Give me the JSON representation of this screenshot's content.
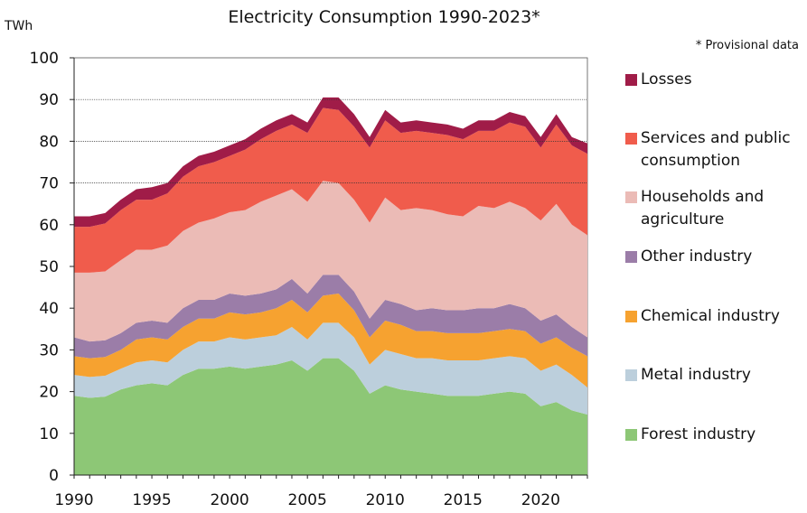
{
  "chart_data": {
    "type": "area",
    "stacked": true,
    "title": "Electricity Consumption 1990-2023*",
    "note": "* Provisional data",
    "ylabel": "TWh",
    "xlabel": "",
    "ylim": [
      0,
      100
    ],
    "yticks": [
      0,
      10,
      20,
      30,
      40,
      50,
      60,
      70,
      80,
      90,
      100
    ],
    "xticks": [
      1990,
      1995,
      2000,
      2005,
      2010,
      2015,
      2020
    ],
    "xlim": [
      1990,
      2023
    ],
    "grid": "horizontal dotted lines at 70, 80, 90",
    "legend_position": "right",
    "x": [
      1990,
      1991,
      1992,
      1993,
      1994,
      1995,
      1996,
      1997,
      1998,
      1999,
      2000,
      2001,
      2002,
      2003,
      2004,
      2005,
      2006,
      2007,
      2008,
      2009,
      2010,
      2011,
      2012,
      2013,
      2014,
      2015,
      2016,
      2017,
      2018,
      2019,
      2020,
      2021,
      2022,
      2023
    ],
    "series": [
      {
        "name": "Forest industry",
        "color": "#8dc776",
        "values": [
          19.0,
          18.5,
          18.8,
          20.5,
          21.5,
          22.0,
          21.5,
          24.0,
          25.5,
          25.5,
          26.0,
          25.5,
          26.0,
          26.5,
          27.5,
          25.0,
          28.0,
          28.0,
          25.0,
          19.5,
          21.5,
          20.5,
          20.0,
          19.5,
          19.0,
          19.0,
          19.0,
          19.5,
          20.0,
          19.5,
          16.5,
          17.5,
          15.5,
          14.5
        ]
      },
      {
        "name": "Metal industry",
        "color": "#bccfdc",
        "values": [
          5.0,
          5.0,
          5.0,
          5.0,
          5.5,
          5.5,
          5.5,
          6.0,
          6.5,
          6.5,
          7.0,
          7.0,
          7.0,
          7.0,
          8.0,
          7.5,
          8.5,
          8.5,
          8.0,
          7.0,
          8.5,
          8.5,
          8.0,
          8.5,
          8.5,
          8.5,
          8.5,
          8.5,
          8.5,
          8.5,
          8.5,
          9.0,
          8.5,
          6.5
        ]
      },
      {
        "name": "Chemical industry",
        "color": "#f6a230",
        "values": [
          4.5,
          4.5,
          4.5,
          4.5,
          5.5,
          5.5,
          5.5,
          5.5,
          5.5,
          5.5,
          6.0,
          6.0,
          6.0,
          6.5,
          6.5,
          6.5,
          6.5,
          7.0,
          6.5,
          6.5,
          7.0,
          7.0,
          6.5,
          6.5,
          6.5,
          6.5,
          6.5,
          6.5,
          6.5,
          6.5,
          6.5,
          6.5,
          6.5,
          7.5
        ]
      },
      {
        "name": "Other industry",
        "color": "#9b7da8",
        "values": [
          4.5,
          4.0,
          4.0,
          4.0,
          4.0,
          4.0,
          4.0,
          4.5,
          4.5,
          4.5,
          4.5,
          4.5,
          4.5,
          4.5,
          5.0,
          4.5,
          5.0,
          4.5,
          4.5,
          4.5,
          5.0,
          5.0,
          5.0,
          5.5,
          5.5,
          5.5,
          6.0,
          5.5,
          6.0,
          5.5,
          5.5,
          5.5,
          5.0,
          4.5
        ]
      },
      {
        "name": "Households and agriculture",
        "color": "#ebbbb6",
        "values": [
          15.5,
          16.5,
          16.5,
          17.5,
          17.5,
          17.0,
          18.5,
          18.5,
          18.5,
          19.5,
          19.5,
          20.5,
          22.0,
          22.5,
          21.5,
          22.0,
          22.5,
          22.0,
          22.0,
          23.0,
          24.5,
          22.5,
          24.5,
          23.5,
          23.0,
          22.5,
          24.5,
          24.0,
          24.5,
          24.0,
          24.0,
          26.5,
          24.5,
          24.5
        ]
      },
      {
        "name": "Services and public consumption",
        "color": "#f05c4c",
        "values": [
          11.0,
          11.0,
          11.5,
          12.0,
          12.0,
          12.0,
          12.5,
          13.0,
          13.5,
          13.5,
          13.5,
          14.5,
          15.0,
          15.5,
          15.5,
          16.5,
          17.5,
          17.5,
          17.5,
          18.0,
          18.5,
          18.5,
          18.5,
          18.5,
          19.0,
          18.5,
          18.0,
          18.5,
          19.0,
          19.5,
          17.5,
          19.0,
          19.0,
          19.5
        ]
      },
      {
        "name": "Losses",
        "color": "#a01c48",
        "values": [
          2.5,
          2.5,
          2.5,
          2.5,
          2.5,
          3.0,
          2.5,
          2.5,
          2.5,
          2.5,
          2.5,
          2.5,
          2.5,
          2.5,
          2.5,
          2.5,
          2.5,
          3.0,
          3.0,
          2.5,
          2.5,
          2.5,
          2.5,
          2.5,
          2.5,
          2.5,
          2.5,
          2.5,
          2.5,
          2.5,
          2.5,
          2.5,
          2.0,
          2.5
        ]
      }
    ],
    "legend_order": [
      "Losses",
      "Services and public consumption",
      "Households and agriculture",
      "Other industry",
      "Chemical industry",
      "Metal industry",
      "Forest industry"
    ]
  }
}
